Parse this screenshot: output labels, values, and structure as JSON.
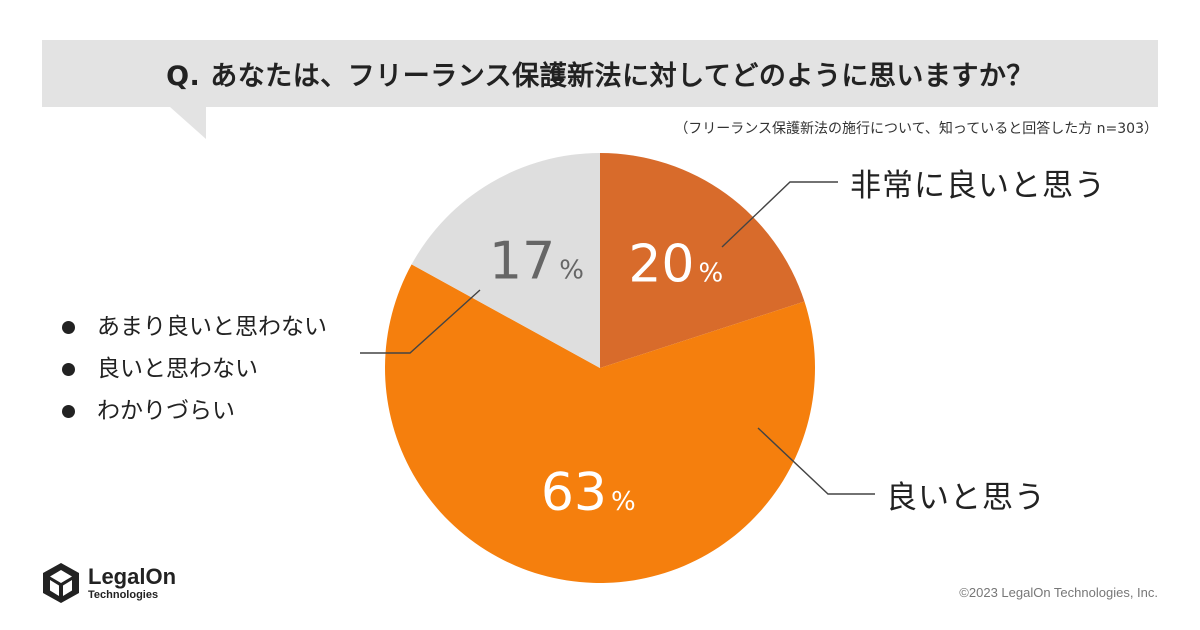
{
  "question": "Q. あなたは、フリーランス保護新法に対してどのように思いますか？",
  "subnote": "（フリーランス保護新法の施行について、知っていると回答した方 n=303）",
  "chart_data": {
    "type": "pie",
    "slices": [
      {
        "label": "非常に良いと思う",
        "value": 20,
        "value_text": "20",
        "color": "#d86b2b"
      },
      {
        "label": "良いと思う",
        "value": 63,
        "value_text": "63",
        "color": "#f57f0d"
      },
      {
        "label": "",
        "value": 17,
        "value_text": "17",
        "color": "#dedede"
      }
    ],
    "percent_sign": "%",
    "other_items": [
      "あまり良いと思わない",
      "良いと思わない",
      "わかりづらい"
    ]
  },
  "brand": {
    "name": "LegalOn",
    "sub": "Technologies",
    "icon": "legalon-logo-icon"
  },
  "copyright": "©2023 LegalOn Technologies, Inc."
}
